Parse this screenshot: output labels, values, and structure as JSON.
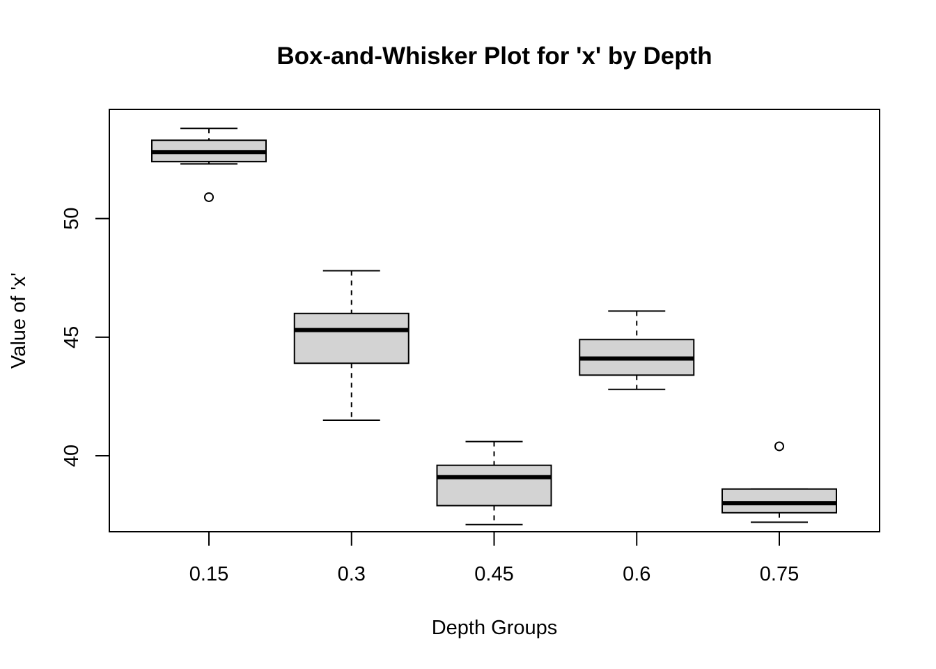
{
  "chart_data": {
    "type": "boxplot",
    "title": "Box-and-Whisker Plot for 'x' by Depth",
    "xlabel": "Depth Groups",
    "ylabel": "Value of 'x'",
    "categories": [
      "0.15",
      "0.3",
      "0.45",
      "0.6",
      "0.75"
    ],
    "ylim": [
      36.8,
      54.6
    ],
    "yticks": [
      40,
      45,
      50
    ],
    "grid": false,
    "legend": "none",
    "box_fill": "#d3d3d3",
    "line_color": "#000000",
    "boxes": [
      {
        "category": "0.15",
        "whisker_low": 52.3,
        "q1": 52.4,
        "median": 52.8,
        "q3": 53.3,
        "whisker_high": 53.8,
        "outliers": [
          50.9
        ]
      },
      {
        "category": "0.3",
        "whisker_low": 41.5,
        "q1": 43.9,
        "median": 45.3,
        "q3": 46.0,
        "whisker_high": 47.8,
        "outliers": []
      },
      {
        "category": "0.45",
        "whisker_low": 37.1,
        "q1": 37.9,
        "median": 39.1,
        "q3": 39.6,
        "whisker_high": 40.6,
        "outliers": []
      },
      {
        "category": "0.6",
        "whisker_low": 42.8,
        "q1": 43.4,
        "median": 44.1,
        "q3": 44.9,
        "whisker_high": 46.1,
        "outliers": []
      },
      {
        "category": "0.75",
        "whisker_low": 37.2,
        "q1": 37.6,
        "median": 38.0,
        "q3": 38.6,
        "whisker_high": 38.6,
        "outliers": [
          40.4
        ]
      }
    ]
  }
}
